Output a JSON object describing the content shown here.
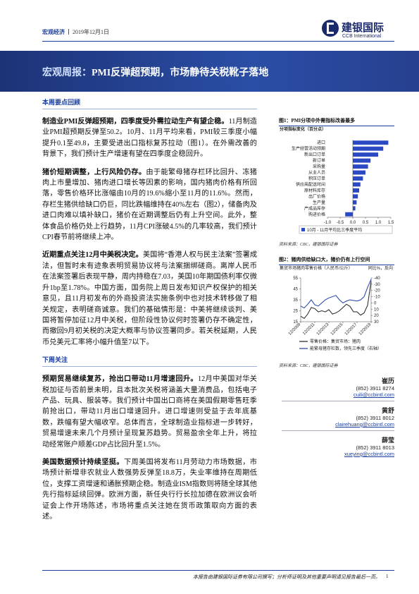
{
  "header": {
    "section": "宏观经济",
    "date": "2019年12月1日",
    "logo_cn": "建银国际",
    "logo_en": "CCB International"
  },
  "title": {
    "label": "宏观周报：",
    "text": "PMI反弹超预期，市场静待关税靴子落地"
  },
  "sections": [
    {
      "heading": "本周要点回顾",
      "paragraphs": [
        {
          "lead": "制造业PMI反弹超预期，四季度受外需拉动生产有望企稳。",
          "text": "11月制造业PMI超预期反弹至50.2。10月、11月平均来看，PMI较三季度小幅提升0.1至49.8，主要受进出口指标复苏拉动（图1）。在外需改善的背景下，我们预计生产增速有望在四季度企稳回升。"
        },
        {
          "lead": "猪价短期调整，上行风险仍存。",
          "text": "由于能繁母猪存栏环比回升、冻猪肉上市量增加、猪肉进口增长等因素的影响，国内猪肉价格有所回落，零售价格环比涨幅由10月的19.6%缩小至11月的11.6%。然而，存栏生猪供给缺口仍巨，同比跌幅维持在40%左右（图2），储备肉及进口肉难以填补缺口，猪价在近期调整后仍有上升空间。此外，整体食品价格仍处上行趋势，11月CPI涨破4.5%的几率较高，我们预计CPI春节前将继续上冲。"
        },
        {
          "lead": "近期重点关注12月中美税决定。",
          "text": "美国将“香港人权与民主法案”签署成法，但暂时未有迹象表明贸易协议将与法案捆绑磋商。离岸人民币在法案签署后表现平静，周内持稳在7.03，美国10年期国债利率仅微升1bp至1.78%。中国方面，国务院上周日发布知识产权保护的相关意见，且11月初发布的外商投资法实施条例中也对技术转移做了相关规定，表明磋商诚意。我们的基础情形是：中美将继续谈判、美国将暂停加征12月中关税，但阶段性协议何时签署仍存不确定性，而撤回9月初关税的决定大概率与协议签署同步。若关税延期，人民币兑美元汇率将小幅升值至7以下。"
        }
      ]
    },
    {
      "heading": "下周关注",
      "paragraphs": [
        {
          "lead": "预期贸易继续复苏，抢出口带动11月增速回升。",
          "text": "12月中美国对华关税加征与否前景未明，且本批次关税将涵盖大量消费品，包括电子产品、玩具、服装等。我们预计中国出口商将在美国假期零售旺季前抢出口，带动11月出口增速回升。进口增速则受益于去年底基数，跌幅有望大幅收窄。总体而言，全球制造业指标进一步转好，贸易增速未来几个月预计呈现复苏趋势。贸易盈余全年上升，将拉动经常账户顺差GDP占比回升至1.5%。"
        },
        {
          "lead": "美国数据预计持续坚挺。",
          "text": "下周美国将发布11月劳动力市场数据，市场预计新增非农就业人数强势反弹至18.8万，失业率维持在周期低位，支撑工资增速和通胀预期企稳。制造业ISM指数则将随全球其他先行指标延续回弹。欧洲方面，新任央行行长拉加德在欧洲议会听证会上作开场陈述，市场将重点关注她在货币政策取向方面的表述。"
        }
      ]
    }
  ],
  "chart_data": [
    {
      "type": "hbar",
      "title": "图1：PMI分项中外需指标改善最多",
      "subtitle": "分项指标变化（百分点）",
      "categories": [
        "进口",
        "生产经营活动预期",
        "新出口订单",
        "新订单",
        "采购量",
        "从业人员",
        "积压订单",
        "供应商配送时间",
        "原材料库存",
        "出厂价格",
        "生产量",
        "产成品库存",
        "购进价格"
      ],
      "series": [
        {
          "name": "10月 - 11月平均比三季度平均",
          "color": "#2a49c2",
          "values": [
            1.4,
            1.2,
            1.0,
            0.7,
            0.6,
            0.5,
            0.4,
            0.3,
            0.25,
            0.2,
            0.15,
            0.1,
            -0.3
          ]
        }
      ],
      "xlim": [
        -1,
        1.5
      ],
      "xticks": [
        {
          "value": -1,
          "label": "-1.0"
        },
        -0.5,
        {
          "value": 0,
          "label": "0.0"
        },
        0.5,
        {
          "value": 1,
          "label": "1.0"
        },
        1.5
      ],
      "source": "资料来源：CBC，建银国际证券"
    },
    {
      "type": "line",
      "title": "图2：猪肉供给缺口大，猪价仍有上行空间",
      "y_label": "集贸市场猪肉零售价格（人民币/公斤）",
      "y2_label": "同比%，反向",
      "categories": [
        "12/2009",
        null,
        null,
        null,
        "12/2011",
        null,
        null,
        null,
        "12/2013",
        null,
        null,
        null,
        "12/2015",
        null,
        null,
        null,
        "12/2017",
        null,
        null,
        null,
        "12/2019"
      ],
      "series": [
        {
          "name": "零售价格：集贸市场：猪肉",
          "color": "#222222",
          "values": [
            20,
            18,
            22,
            28,
            27,
            24,
            25,
            24,
            26,
            22,
            23,
            25,
            28,
            31,
            29,
            24,
            24,
            21,
            23,
            30,
            52
          ]
        },
        {
          "name": "能繁母猪存栏数，领先三季度（右轴）",
          "color": "#1f3fa6",
          "axis": "y2",
          "values": [
            5,
            8,
            2,
            -5,
            3,
            5,
            0,
            -5,
            -8,
            -10,
            -12,
            -5,
            0,
            -3,
            -5,
            -4,
            -3,
            -5,
            -10,
            -25,
            -38
          ]
        }
      ],
      "ylim": [
        15,
        55
      ],
      "yticks": [
        15,
        25,
        35,
        45,
        55
      ],
      "y2lim": [
        -40,
        30
      ],
      "y2ticks": [
        -40,
        -30,
        -20,
        -10,
        0,
        10,
        20,
        30
      ],
      "y2_inverted": true,
      "source": "资料来源：CBC，建银国际证券"
    }
  ],
  "analysts": [
    {
      "name": "崔历",
      "phone": "(852) 3911 8274",
      "email": "cuili@ccbintl.com"
    },
    {
      "name": "黄舒",
      "phone": "(852) 3911 8012",
      "email": "clairehuang@ccbintl.com"
    },
    {
      "name": "薛莹",
      "phone": "(852) 3911 8013",
      "email": "xueying@ccbintl.com"
    }
  ],
  "footer": {
    "disclaimer": "本报告由建银国际证券有限公司撰写；分析师证明及其他重要声明请见报告最后一页。",
    "page": "1"
  }
}
